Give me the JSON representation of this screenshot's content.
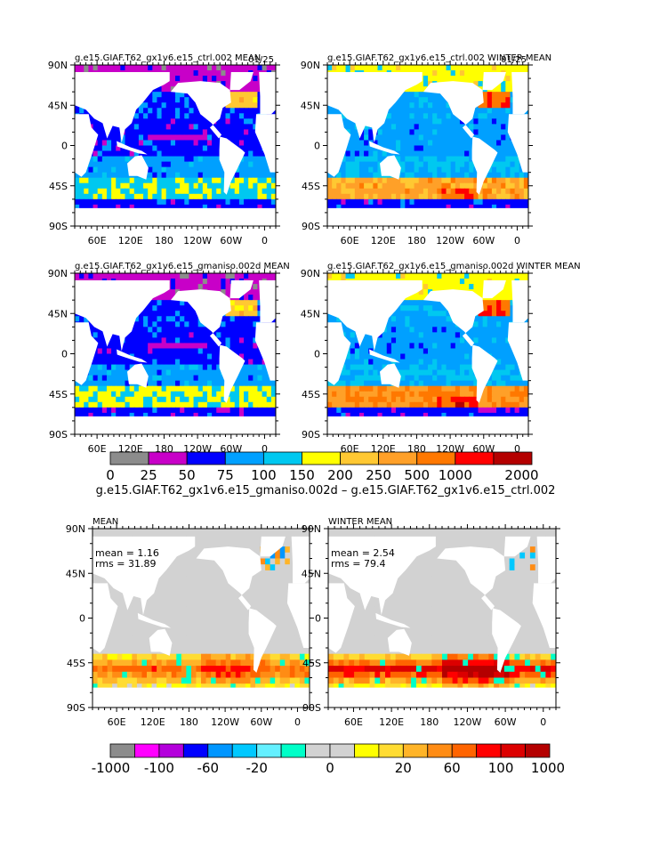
{
  "chart_data": {
    "type": "heatmap",
    "figure_variable_note": "",
    "lat_tick_labels": [
      "90N",
      "45N",
      "0",
      "45S",
      "90S"
    ],
    "lon_tick_labels": [
      "60E",
      "120E",
      "180",
      "120W",
      "60W",
      "0"
    ],
    "lat_ticks": [
      90,
      45,
      0,
      -45,
      -90
    ],
    "lon_ticks": [
      60,
      120,
      180,
      240,
      300,
      360
    ],
    "lon_range": [
      20,
      380
    ],
    "lat_range": [
      -90,
      90
    ],
    "panels": [
      {
        "id": "ctrl-mean",
        "title": "g.e15.GIAF.T62_gx1v6.e15_ctrl.002 MEAN",
        "overlap_text": "01/25",
        "kind": "field",
        "case": "ctrl",
        "season": "mean"
      },
      {
        "id": "ctrl-winter",
        "title": "g.e15.GIAF.T62_gx1v6.e15_ctrl.002 WINTER MEAN",
        "overlap_text": "01/25",
        "kind": "field",
        "case": "ctrl",
        "season": "winter"
      },
      {
        "id": "gmaniso-mean",
        "title": "g.e15.GIAF.T62_gx1v6.e15_gmaniso.002d MEAN",
        "kind": "field",
        "case": "gmaniso",
        "season": "mean"
      },
      {
        "id": "gmaniso-winter",
        "title": "g.e15.GIAF.T62_gx1v6.e15_gmaniso.002d WINTER MEAN",
        "kind": "field",
        "case": "gmaniso",
        "season": "winter"
      },
      {
        "id": "diff-mean",
        "title": "MEAN",
        "kind": "diff",
        "season": "mean",
        "stats": {
          "mean": "mean = 1.16",
          "rms": "rms = 31.89"
        }
      },
      {
        "id": "diff-winter",
        "title": "WINTER MEAN",
        "kind": "diff",
        "season": "winter",
        "stats": {
          "mean": "mean = 2.54",
          "rms": "rms = 79.4"
        }
      }
    ],
    "colorbar_top": {
      "bounds": [
        0,
        25,
        50,
        75,
        100,
        150,
        200,
        250,
        500,
        1000,
        2000
      ],
      "tick_labels": [
        "0",
        "25",
        "50",
        "75",
        "100",
        "150",
        "200",
        "250",
        "500",
        "1000",
        "2000"
      ],
      "colors": [
        "#8c8c8c",
        "#c800c8",
        "#0000ff",
        "#00a0ff",
        "#00c8f0",
        "#ffff00",
        "#ffc832",
        "#ffa028",
        "#ff7800",
        "#ff0000",
        "#b40000"
      ]
    },
    "difference_title": "g.e15.GIAF.T62_gx1v6.e15_gmaniso.002d – g.e15.GIAF.T62_gx1v6.e15_ctrl.002",
    "colorbar_bottom": {
      "tick_labels": [
        "-1000",
        "-100",
        "-60",
        "-20",
        "0",
        "20",
        "60",
        "100",
        "1000"
      ],
      "colors": [
        "#8c8c8c",
        "#ff00ff",
        "#b400dc",
        "#0000ff",
        "#0096ff",
        "#00c8ff",
        "#64f0ff",
        "#00ffc8",
        "#d2d2d2",
        "#d2d2d2",
        "#ffff00",
        "#ffdc32",
        "#ffb428",
        "#ff8c14",
        "#ff6400",
        "#ff0000",
        "#dc0000",
        "#b40000"
      ]
    }
  }
}
